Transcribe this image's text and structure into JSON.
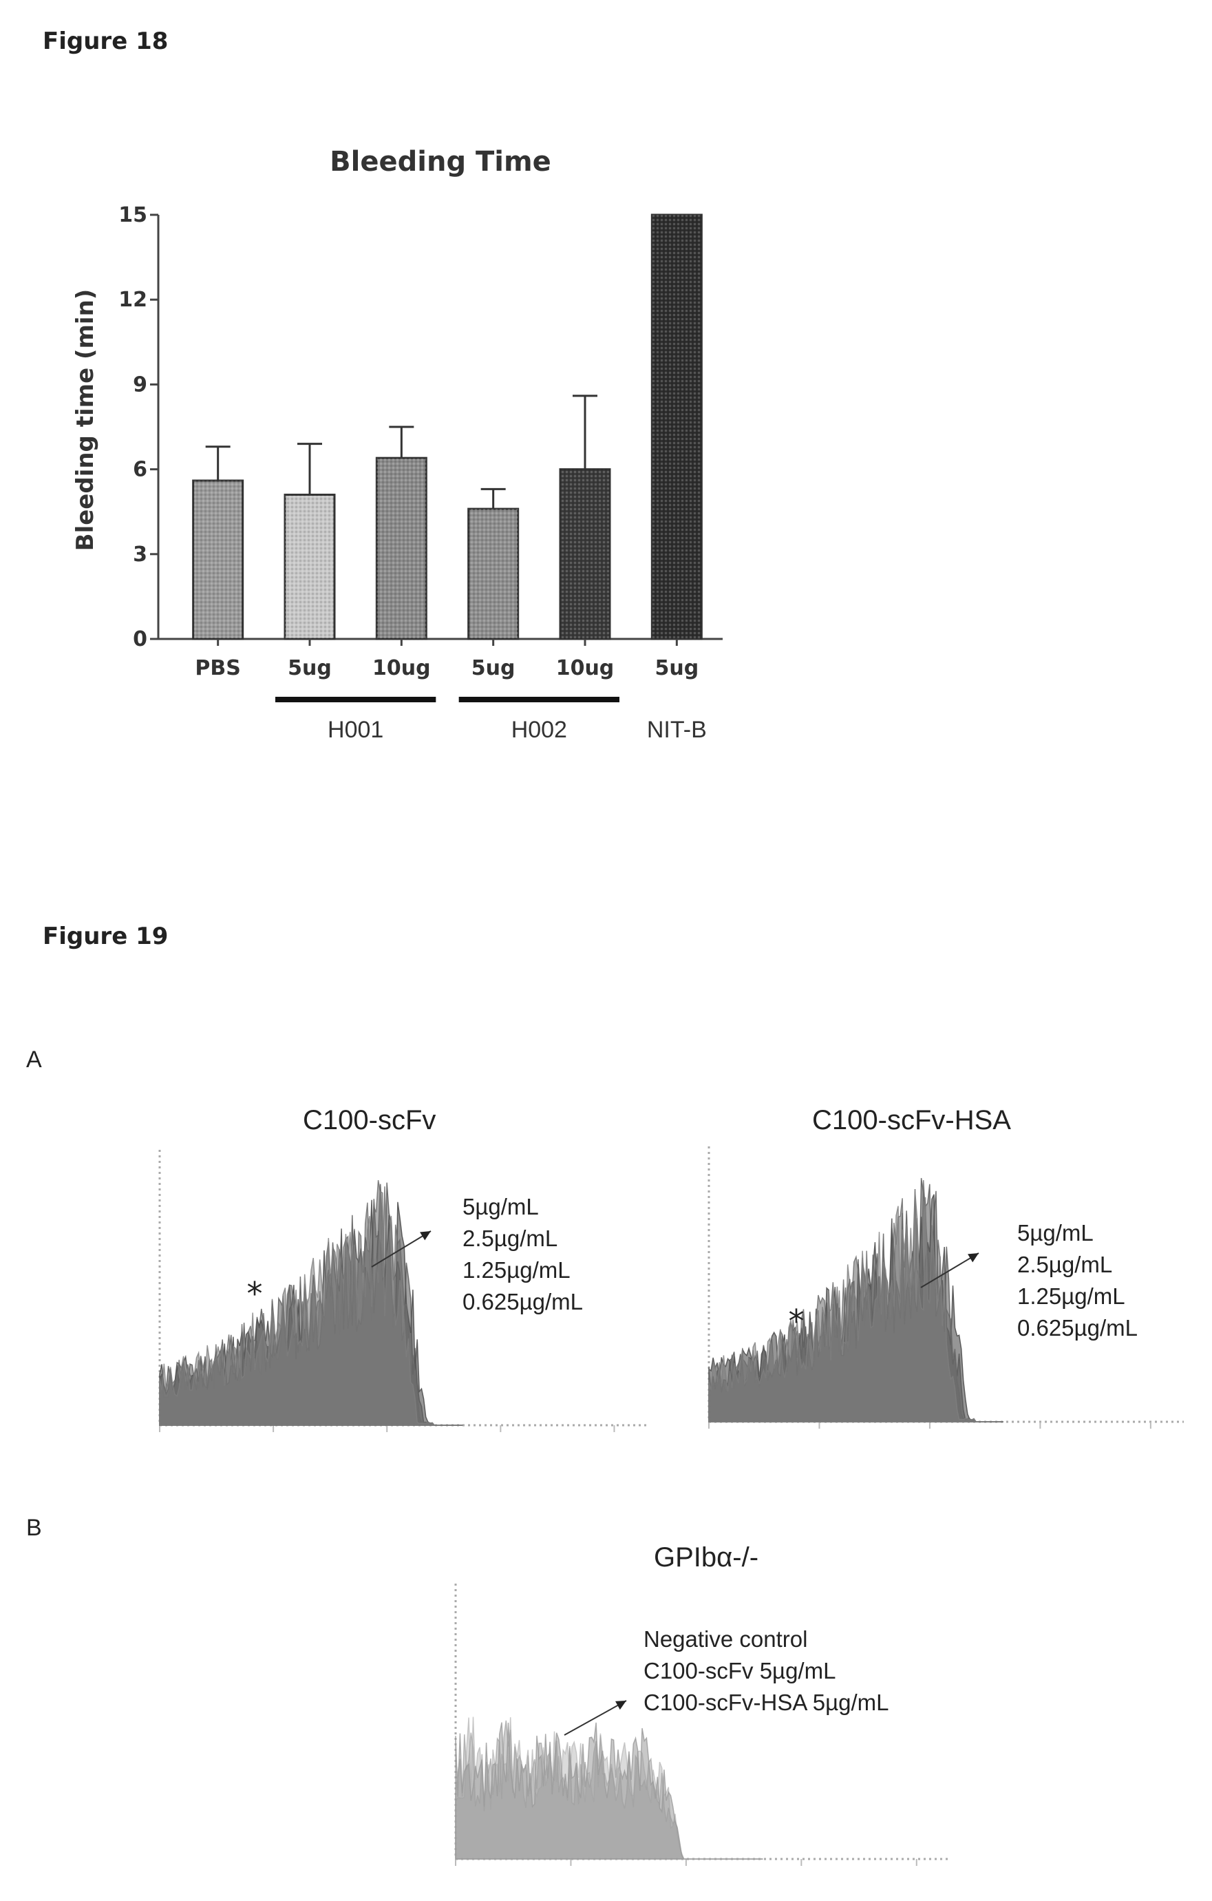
{
  "figure18": {
    "label": "Figure 18"
  },
  "figure19": {
    "label": "Figure 19",
    "panel_a_letter": "A",
    "panel_b_letter": "B"
  },
  "chart_data": [
    {
      "type": "bar",
      "title": "Bleeding Time",
      "ylabel": "Bleeding time (min)",
      "xlabel": "",
      "ylim": [
        0,
        15
      ],
      "yticks": [
        0,
        3,
        6,
        9,
        12,
        15
      ],
      "categories": [
        "PBS",
        "5ug",
        "10ug",
        "5ug",
        "10ug",
        "5ug"
      ],
      "groups": [
        {
          "label": "H001",
          "categories": [
            1,
            2
          ]
        },
        {
          "label": "H002",
          "categories": [
            3,
            4
          ]
        },
        {
          "label": "NIT-B",
          "categories": [
            5
          ]
        }
      ],
      "values": [
        5.6,
        5.1,
        6.4,
        4.6,
        6.0,
        15.0
      ],
      "errors": [
        1.2,
        1.8,
        1.1,
        0.7,
        2.6,
        0
      ],
      "colors": [
        "#9a9a9a",
        "#c8c8c8",
        "#8a8a8a",
        "#8e8e8e",
        "#3a3a3a",
        "#2e2e2e"
      ]
    },
    {
      "type": "area",
      "title": "C100-scFv",
      "legend": [
        "5µg/mL",
        "2.5µg/mL",
        "1.25µg/mL",
        "0.625µg/mL"
      ],
      "series": [
        {
          "name": "5µg/mL",
          "color": "#404040"
        },
        {
          "name": "2.5µg/mL",
          "color": "#555555"
        },
        {
          "name": "1.25µg/mL",
          "color": "#6a6a6a"
        },
        {
          "name": "0.625µg/mL",
          "color": "#808080"
        }
      ],
      "annotation": "*"
    },
    {
      "type": "area",
      "title": "C100-scFv-HSA",
      "legend": [
        "5µg/mL",
        "2.5µg/mL",
        "1.25µg/mL",
        "0.625µg/mL"
      ],
      "series": [
        {
          "name": "5µg/mL",
          "color": "#404040"
        },
        {
          "name": "2.5µg/mL",
          "color": "#555555"
        },
        {
          "name": "1.25µg/mL",
          "color": "#6a6a6a"
        },
        {
          "name": "0.625µg/mL",
          "color": "#808080"
        }
      ],
      "annotation": "*"
    },
    {
      "type": "area",
      "title": "GPIbα-/-",
      "legend": [
        "Negative control",
        "C100-scFv 5µg/mL",
        "C100-scFv-HSA 5µg/mL"
      ],
      "series": [
        {
          "name": "Negative control",
          "color": "#bdbdbd"
        },
        {
          "name": "C100-scFv 5µg/mL",
          "color": "#a8a8a8"
        },
        {
          "name": "C100-scFv-HSA 5µg/mL",
          "color": "#9a9a9a"
        }
      ]
    }
  ]
}
